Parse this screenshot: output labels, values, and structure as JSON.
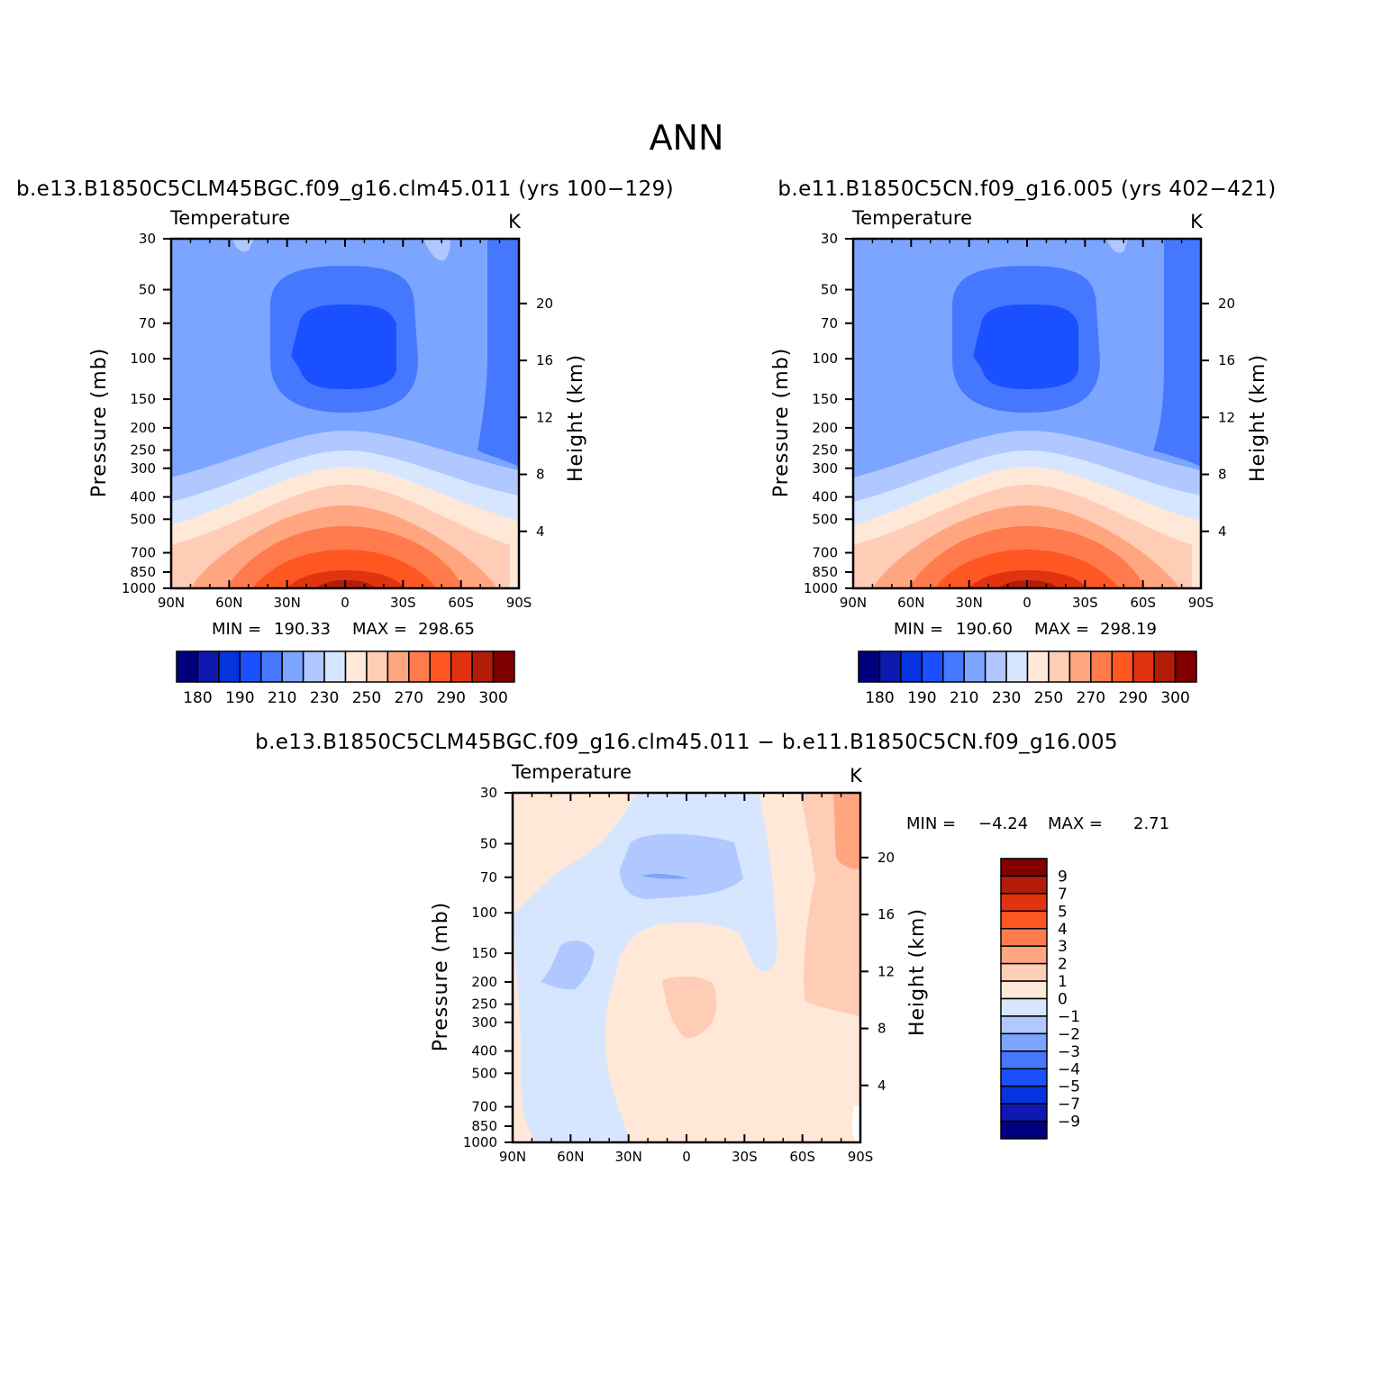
{
  "page_title": "ANN",
  "colors": {
    "scale": [
      "#00007f",
      "#0e19af",
      "#0533dd",
      "#1a50ff",
      "#4678ff",
      "#7ca5ff",
      "#b0c8ff",
      "#d6e6ff",
      "#ffe8d8",
      "#ffccb6",
      "#ffa681",
      "#ff7b4d",
      "#ff5722",
      "#e23310",
      "#b11d09",
      "#810000"
    ]
  },
  "chart_data": [
    {
      "type": "contour",
      "title": "b.e13.B1850C5CLM45BGC.f09_g16.clm45.011 (yrs 100-129)",
      "variable": "Temperature",
      "units": "K",
      "xlabel": "",
      "ylabel": "Pressure (mb)",
      "y2label": "Height (km)",
      "x_ticks": [
        "90N",
        "60N",
        "30N",
        "0",
        "30S",
        "60S",
        "90S"
      ],
      "x_range": [
        90,
        -90
      ],
      "y_ticks": [
        30,
        50,
        70,
        100,
        150,
        200,
        250,
        300,
        400,
        500,
        700,
        850,
        1000
      ],
      "y_range": [
        30,
        1000
      ],
      "y2_ticks": [
        20,
        16,
        12,
        8,
        4
      ],
      "min": "190.33",
      "max": "298.65",
      "min_label": "MIN =",
      "max_label": "MAX =",
      "levels": [
        180,
        190,
        200,
        210,
        220,
        230,
        240,
        250,
        260,
        270,
        280,
        290,
        295,
        300
      ],
      "colorbar_labels": [
        "180",
        "190",
        "210",
        "230",
        "250",
        "270",
        "290",
        "300"
      ]
    },
    {
      "type": "contour",
      "title": "b.e11.B1850C5CN.f09_g16.005 (yrs 402-421)",
      "variable": "Temperature",
      "units": "K",
      "xlabel": "",
      "ylabel": "Pressure (mb)",
      "y2label": "Height (km)",
      "x_ticks": [
        "90N",
        "60N",
        "30N",
        "0",
        "30S",
        "60S",
        "90S"
      ],
      "x_range": [
        90,
        -90
      ],
      "y_ticks": [
        30,
        50,
        70,
        100,
        150,
        200,
        250,
        300,
        400,
        500,
        700,
        850,
        1000
      ],
      "y_range": [
        30,
        1000
      ],
      "y2_ticks": [
        20,
        16,
        12,
        8,
        4
      ],
      "min": "190.60",
      "max": "298.19",
      "min_label": "MIN =",
      "max_label": "MAX =",
      "levels": [
        180,
        190,
        200,
        210,
        220,
        230,
        240,
        250,
        260,
        270,
        280,
        290,
        295,
        300
      ],
      "colorbar_labels": [
        "180",
        "190",
        "210",
        "230",
        "250",
        "270",
        "290",
        "300"
      ]
    },
    {
      "type": "contour",
      "title": "b.e13.B1850C5CLM45BGC.f09_g16.clm45.011 - b.e11.B1850C5CN.f09_g16.005",
      "variable": "Temperature",
      "units": "K",
      "xlabel": "",
      "ylabel": "Pressure (mb)",
      "y2label": "Height (km)",
      "x_ticks": [
        "90N",
        "60N",
        "30N",
        "0",
        "30S",
        "60S",
        "90S"
      ],
      "x_range": [
        90,
        -90
      ],
      "y_ticks": [
        30,
        50,
        70,
        100,
        150,
        200,
        250,
        300,
        400,
        500,
        700,
        850,
        1000
      ],
      "y_range": [
        30,
        1000
      ],
      "y2_ticks": [
        20,
        16,
        12,
        8,
        4
      ],
      "min": "-4.24",
      "max": "2.71",
      "min_label": "MIN =",
      "max_label": "MAX =",
      "levels": [
        -9,
        -7,
        -5,
        -4,
        -3,
        -2,
        -1,
        0,
        1,
        2,
        3,
        4,
        5,
        7,
        9
      ],
      "colorbar_labels": [
        "9",
        "7",
        "5",
        "4",
        "3",
        "2",
        "1",
        "0",
        "-1",
        "-2",
        "-3",
        "-4",
        "-5",
        "-7",
        "-9"
      ]
    }
  ]
}
